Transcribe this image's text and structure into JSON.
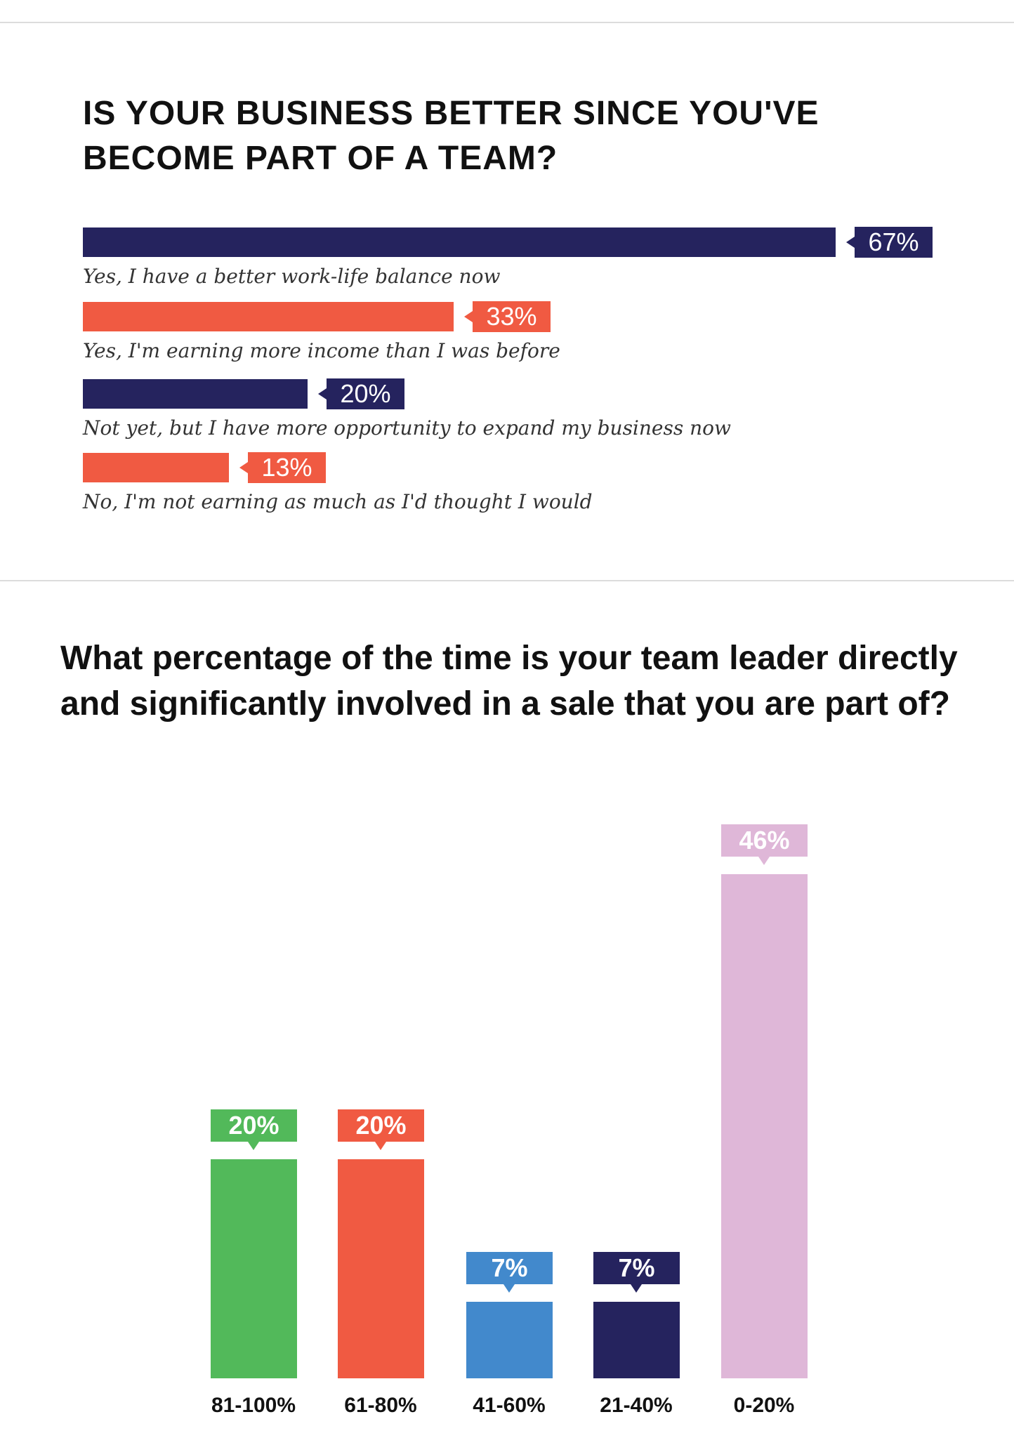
{
  "chart_data": [
    {
      "type": "bar",
      "orientation": "horizontal",
      "title": "IS YOUR BUSINESS BETTER SINCE YOU'VE BECOME PART OF A TEAM?",
      "categories": [
        "Yes, I have a better work-life balance now",
        "Yes, I'm earning more income than I was before",
        "Not yet, but I have more opportunity to expand my business now",
        "No, I'm not earning as much as I'd thought I would"
      ],
      "values": [
        67,
        33,
        20,
        13
      ],
      "labels": [
        "67%",
        "33%",
        "20%",
        "13%"
      ],
      "colors": [
        "#25235e",
        "#f05a42",
        "#25235e",
        "#f05a42"
      ]
    },
    {
      "type": "bar",
      "orientation": "vertical",
      "title": "What percentage of the time is your team leader directly and significantly involved in a sale that you are part of?",
      "categories": [
        "81-100%",
        "61-80%",
        "41-60%",
        "21-40%",
        "0-20%"
      ],
      "values": [
        20,
        20,
        7,
        7,
        46
      ],
      "labels": [
        "20%",
        "20%",
        "7%",
        "7%",
        "46%"
      ],
      "colors": [
        "#52b95a",
        "#f05a42",
        "#4289cc",
        "#25235e",
        "#dfb7d8"
      ],
      "ylim": [
        0,
        50
      ]
    }
  ]
}
